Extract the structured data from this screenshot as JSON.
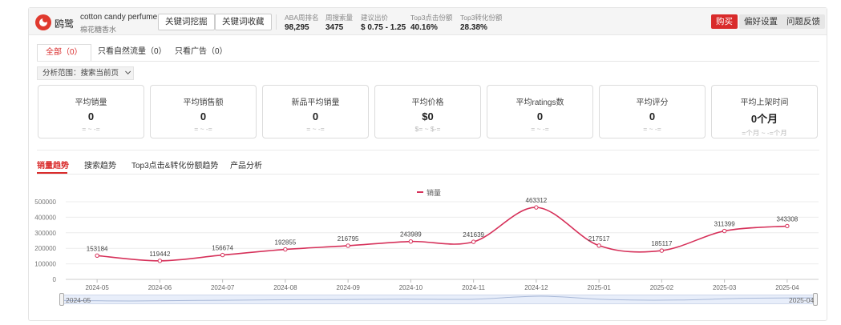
{
  "header": {
    "brand": "鸥鹭",
    "keyword": "cotton candy perfume",
    "keyword_cn": "棉花糖香水",
    "buttons": [
      "关键词挖掘",
      "关键词收藏"
    ],
    "stats": [
      {
        "label": "ABA周排名",
        "value": "98,295"
      },
      {
        "label": "周搜索量",
        "value": "3475"
      },
      {
        "label": "建议出价",
        "value": "$ 0.75 - 1.25"
      },
      {
        "label": "Top3点击份额",
        "value": "40.16%"
      },
      {
        "label": "Top3转化份额",
        "value": "28.38%"
      }
    ],
    "right_buttons": {
      "buy": "购买",
      "preferences": "偏好设置",
      "feedback": "问题反馈"
    },
    "colors": {
      "accent": "#d92b2b"
    }
  },
  "filter_tabs": [
    {
      "label": "全部（0）",
      "active": true
    },
    {
      "label": "只看自然流量（0）",
      "active": false
    },
    {
      "label": "只看广告（0）",
      "active": false
    }
  ],
  "scope": {
    "label": "分析范围：搜索当前页",
    "icon": "chevron-down-icon"
  },
  "cards": [
    {
      "label": "平均销量",
      "value": "0",
      "sub": "= ~ -="
    },
    {
      "label": "平均销售额",
      "value": "0",
      "sub": "= ~ -="
    },
    {
      "label": "新品平均销量",
      "value": "0",
      "sub": "= ~ -="
    },
    {
      "label": "平均价格",
      "value": "$0",
      "sub": "$= ~ $-="
    },
    {
      "label": "平均ratings数",
      "value": "0",
      "sub": "= ~ -="
    },
    {
      "label": "平均评分",
      "value": "0",
      "sub": "= ~ -="
    },
    {
      "label": "平均上架时间",
      "value": "0个月",
      "sub": "=个月 ~ -=个月"
    }
  ],
  "chart_tabs": [
    {
      "label": "销量趋势",
      "active": true
    },
    {
      "label": "搜索趋势",
      "active": false
    },
    {
      "label": "Top3点击&转化份额趋势",
      "active": false
    },
    {
      "label": "产品分析",
      "active": false
    }
  ],
  "chart_data": {
    "type": "line",
    "categories": [
      "2024-05",
      "2024-06",
      "2024-07",
      "2024-08",
      "2024-09",
      "2024-10",
      "2024-11",
      "2024-12",
      "2025-01",
      "2025-02",
      "2025-03",
      "2025-04"
    ],
    "series": [
      {
        "name": "销量",
        "values": [
          153184,
          119442,
          156674,
          192855,
          216795,
          243989,
          241639,
          463312,
          217517,
          185117,
          311399,
          343308
        ],
        "color": "#d6315a"
      }
    ],
    "yticks": [
      "0",
      "100000",
      "200000",
      "300000",
      "400000",
      "500000"
    ],
    "ylim": [
      0,
      500000
    ],
    "grid": true,
    "legend": "top-center",
    "title": "",
    "xlabel": "",
    "ylabel": ""
  },
  "slider": {
    "start": "2024-05",
    "end": "2025-04"
  }
}
